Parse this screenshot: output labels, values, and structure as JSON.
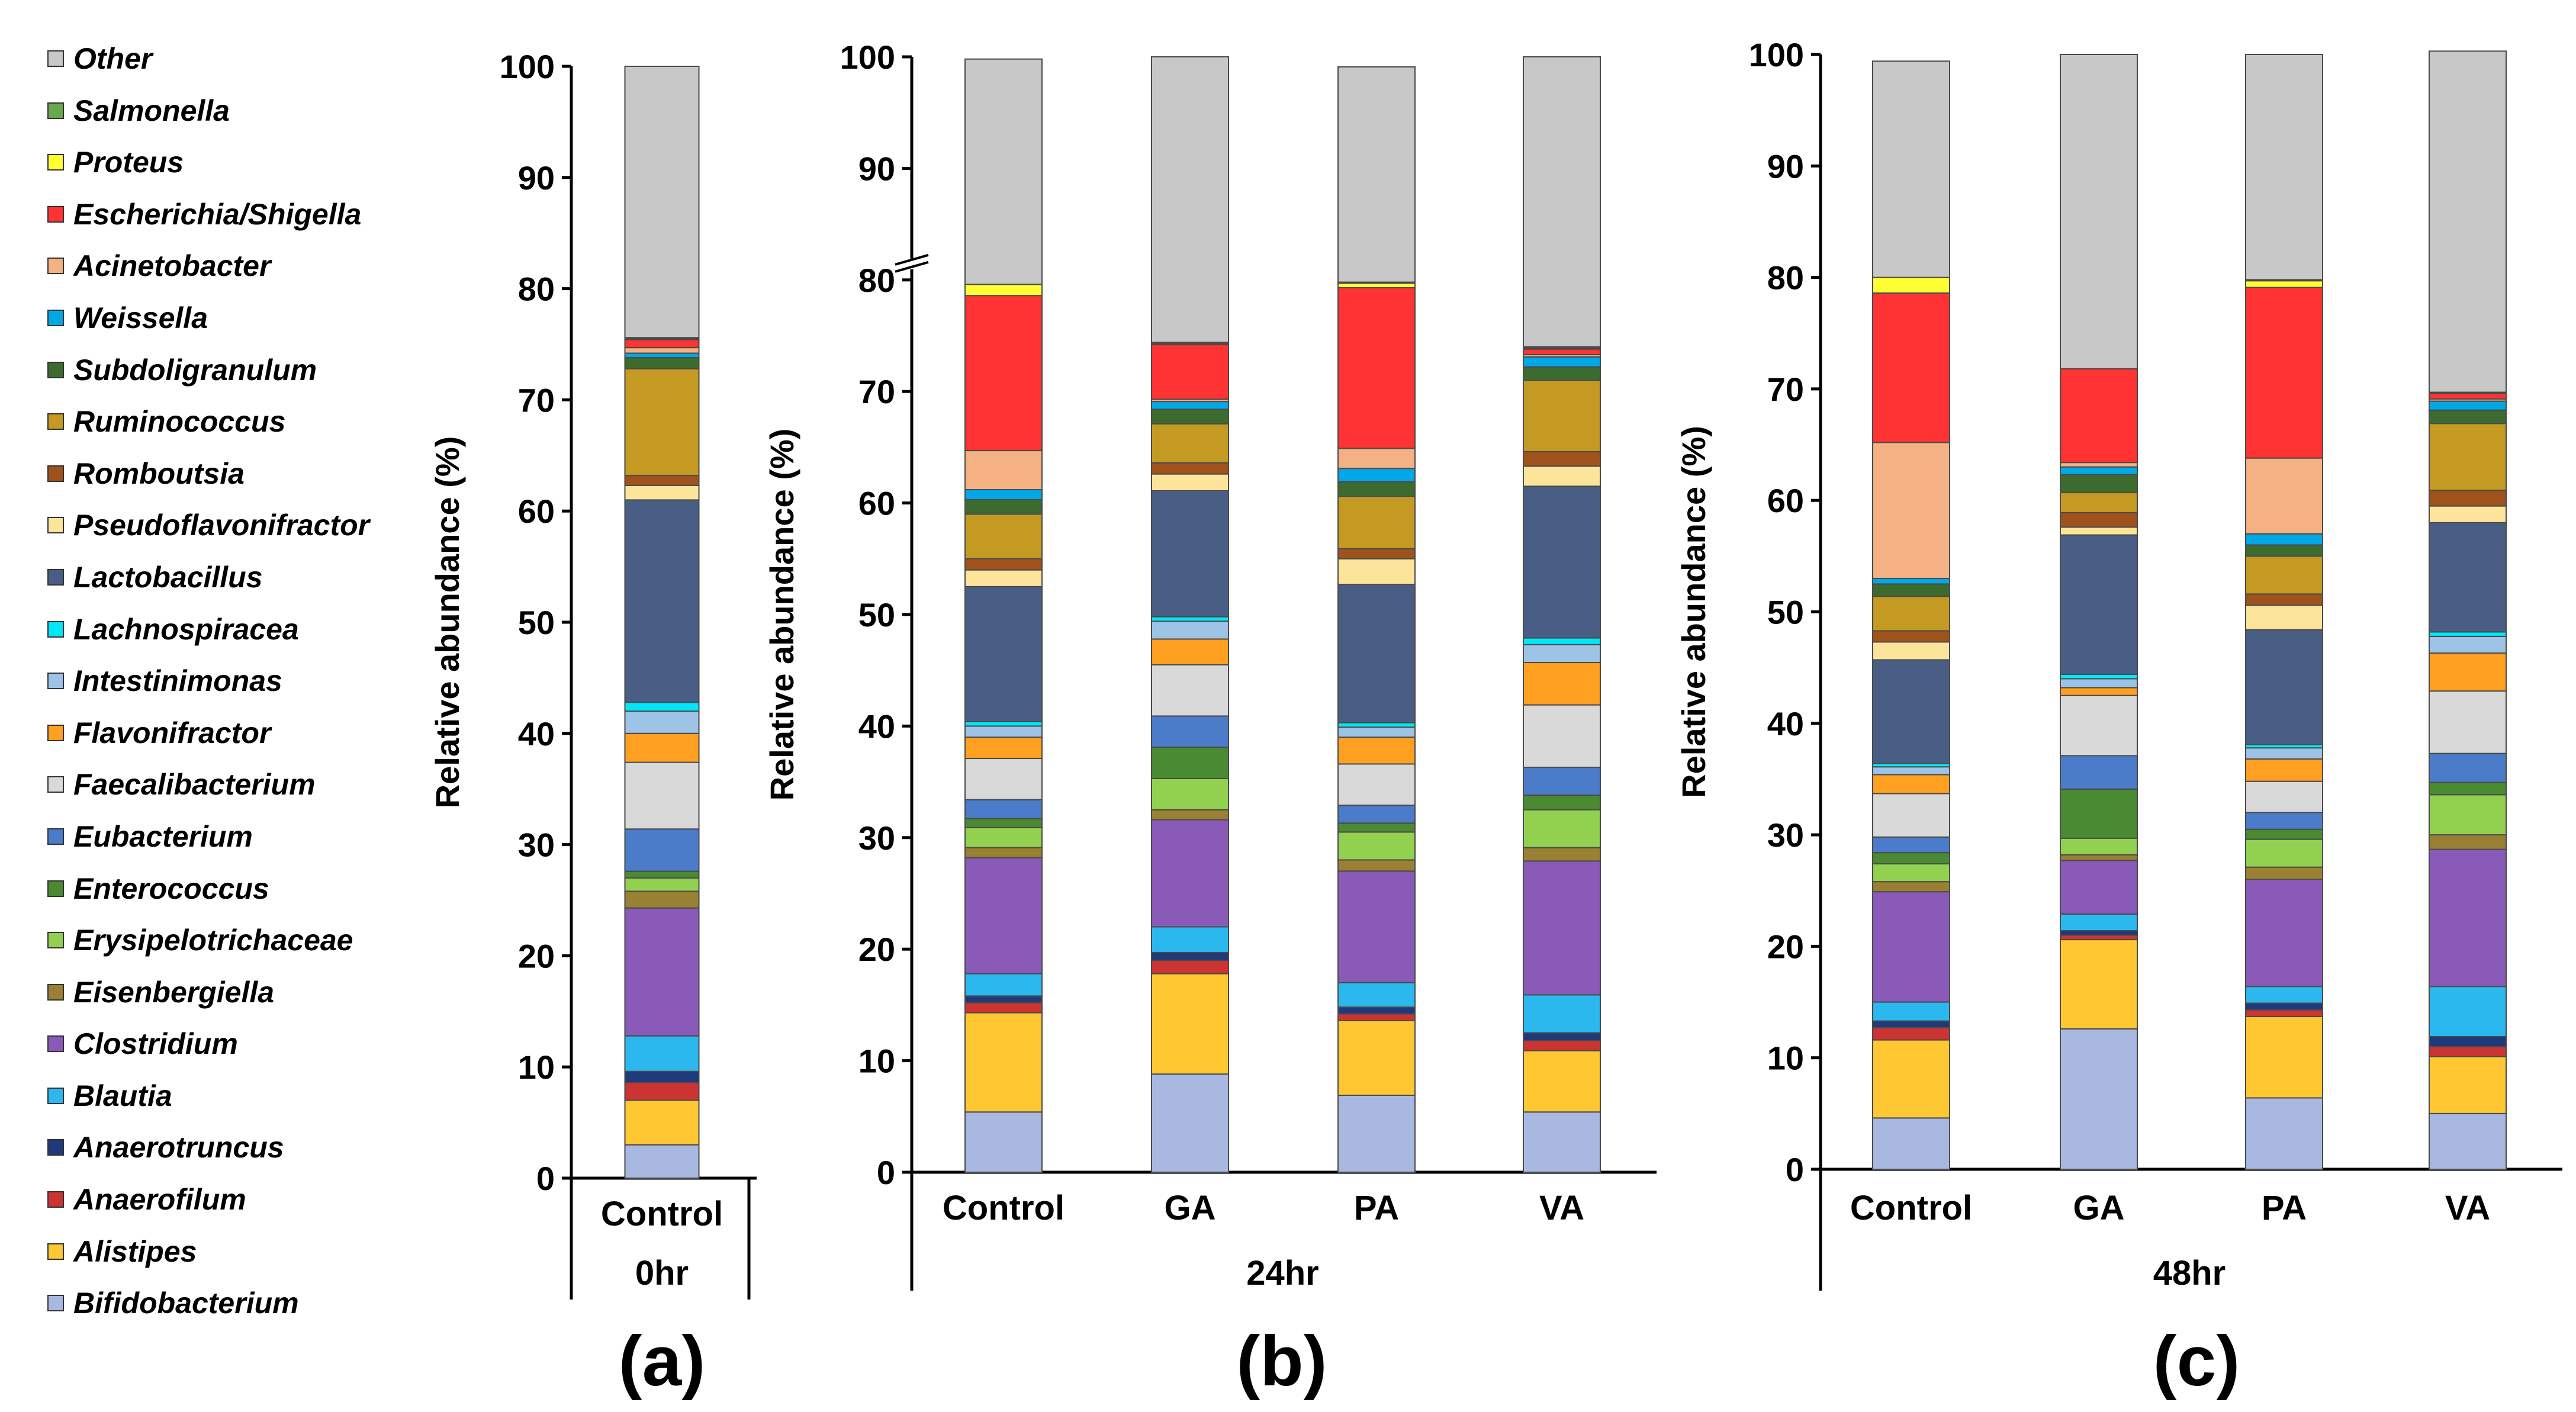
{
  "legend": [
    {
      "name": "Other",
      "color": "#c8c8c8"
    },
    {
      "name": "Salmonella",
      "color": "#6aa84f"
    },
    {
      "name": "Proteus",
      "color": "#ffff33"
    },
    {
      "name": "Escherichia/Shigella",
      "color": "#ff3333"
    },
    {
      "name": "Acinetobacter",
      "color": "#f4b183"
    },
    {
      "name": "Weissella",
      "color": "#00a8e8"
    },
    {
      "name": "Subdoligranulum",
      "color": "#3d6b2f"
    },
    {
      "name": "Ruminococcus",
      "color": "#c49a22"
    },
    {
      "name": "Romboutsia",
      "color": "#a0521d"
    },
    {
      "name": "Pseudoflavonifractor",
      "color": "#fce59a"
    },
    {
      "name": "Lactobacillus",
      "color": "#4a5e85"
    },
    {
      "name": "Lachnospiracea",
      "color": "#00e8f8"
    },
    {
      "name": "Intestinimonas",
      "color": "#9dc3e6"
    },
    {
      "name": "Flavonifractor",
      "color": "#ffa020"
    },
    {
      "name": "Faecalibacterium",
      "color": "#d9d9d9"
    },
    {
      "name": "Eubacterium",
      "color": "#4a7cc9"
    },
    {
      "name": "Enterococcus",
      "color": "#4a8a32"
    },
    {
      "name": "Erysipelotrichaceae",
      "color": "#92d050"
    },
    {
      "name": "Eisenbergiella",
      "color": "#9a8032"
    },
    {
      "name": "Clostridium",
      "color": "#8a5ab8"
    },
    {
      "name": "Blautia",
      "color": "#2ab8ee"
    },
    {
      "name": "Anaerotruncus",
      "color": "#1f3a7a"
    },
    {
      "name": "Anaerofilum",
      "color": "#cc3333"
    },
    {
      "name": "Alistipes",
      "color": "#ffc832"
    },
    {
      "name": "Bifidobacterium",
      "color": "#a8b8e0"
    }
  ],
  "chart_data": [
    {
      "type": "bar",
      "stacked": true,
      "panel": "(a)",
      "group_label": "0hr",
      "ylabel": "Relative abundance (%)",
      "ylim": [
        0,
        100
      ],
      "yticks": [
        "0",
        "10",
        "20",
        "30",
        "40",
        "50",
        "60",
        "70",
        "80",
        "90",
        "100"
      ],
      "categories": [
        "Control"
      ],
      "stack_order_bottom_to_top": [
        "Bifidobacterium",
        "Alistipes",
        "Anaerofilum",
        "Anaerotruncus",
        "Blautia",
        "Clostridium",
        "Eisenbergiella",
        "Erysipelotrichaceae",
        "Enterococcus",
        "Eubacterium",
        "Faecalibacterium",
        "Flavonifractor",
        "Intestinimonas",
        "Lachnospiracea",
        "Lactobacillus",
        "Pseudoflavonifractor",
        "Romboutsia",
        "Ruminococcus",
        "Subdoligranulum",
        "Weissella",
        "Acinetobacter",
        "Escherichia/Shigella",
        "Proteus",
        "Salmonella",
        "Other"
      ],
      "series": [
        {
          "name": "Bifidobacterium",
          "values": [
            3.0
          ]
        },
        {
          "name": "Alistipes",
          "values": [
            4.0
          ]
        },
        {
          "name": "Anaerofilum",
          "values": [
            1.6
          ]
        },
        {
          "name": "Anaerotruncus",
          "values": [
            1.0
          ]
        },
        {
          "name": "Blautia",
          "values": [
            3.2
          ]
        },
        {
          "name": "Clostridium",
          "values": [
            11.5
          ]
        },
        {
          "name": "Eisenbergiella",
          "values": [
            1.5
          ]
        },
        {
          "name": "Erysipelotrichaceae",
          "values": [
            1.2
          ]
        },
        {
          "name": "Enterococcus",
          "values": [
            0.6
          ]
        },
        {
          "name": "Eubacterium",
          "values": [
            3.8
          ]
        },
        {
          "name": "Faecalibacterium",
          "values": [
            6.0
          ]
        },
        {
          "name": "Flavonifractor",
          "values": [
            2.6
          ]
        },
        {
          "name": "Intestinimonas",
          "values": [
            2.0
          ]
        },
        {
          "name": "Lachnospiracea",
          "values": [
            0.8
          ]
        },
        {
          "name": "Lactobacillus",
          "values": [
            18.2
          ]
        },
        {
          "name": "Pseudoflavonifractor",
          "values": [
            1.3
          ]
        },
        {
          "name": "Romboutsia",
          "values": [
            0.9
          ]
        },
        {
          "name": "Ruminococcus",
          "values": [
            9.6
          ]
        },
        {
          "name": "Subdoligranulum",
          "values": [
            1.0
          ]
        },
        {
          "name": "Weissella",
          "values": [
            0.4
          ]
        },
        {
          "name": "Acinetobacter",
          "values": [
            0.5
          ]
        },
        {
          "name": "Escherichia/Shigella",
          "values": [
            0.7
          ]
        },
        {
          "name": "Proteus",
          "values": [
            0.1
          ]
        },
        {
          "name": "Salmonella",
          "values": [
            0.1
          ]
        },
        {
          "name": "Other",
          "values": [
            24.4
          ]
        }
      ]
    },
    {
      "type": "bar",
      "stacked": true,
      "panel": "(b)",
      "group_label": "24hr",
      "ylabel": "Relative abundance (%)",
      "ylim": [
        0,
        100
      ],
      "yticks": [
        "0",
        "10",
        "20",
        "30",
        "40",
        "50",
        "60",
        "70",
        "80",
        "90",
        "100"
      ],
      "axis_break": true,
      "categories": [
        "Control",
        "GA",
        "PA",
        "VA"
      ],
      "series": [
        {
          "name": "Bifidobacterium",
          "values": [
            5.4,
            8.8,
            6.9,
            5.4
          ]
        },
        {
          "name": "Alistipes",
          "values": [
            8.9,
            9.0,
            6.7,
            5.5
          ]
        },
        {
          "name": "Anaerofilum",
          "values": [
            0.9,
            1.2,
            0.6,
            0.9
          ]
        },
        {
          "name": "Anaerotruncus",
          "values": [
            0.6,
            0.7,
            0.6,
            0.7
          ]
        },
        {
          "name": "Blautia",
          "values": [
            2.0,
            2.3,
            2.2,
            3.4
          ]
        },
        {
          "name": "Clostridium",
          "values": [
            10.4,
            9.6,
            10.0,
            12.0
          ]
        },
        {
          "name": "Eisenbergiella",
          "values": [
            0.9,
            0.9,
            1.0,
            1.2
          ]
        },
        {
          "name": "Erysipelotrichaceae",
          "values": [
            1.8,
            2.8,
            2.5,
            3.4
          ]
        },
        {
          "name": "Enterococcus",
          "values": [
            0.8,
            2.8,
            0.8,
            1.3
          ]
        },
        {
          "name": "Eubacterium",
          "values": [
            1.7,
            2.8,
            1.6,
            2.5
          ]
        },
        {
          "name": "Faecalibacterium",
          "values": [
            3.7,
            4.6,
            3.7,
            5.6
          ]
        },
        {
          "name": "Flavonifractor",
          "values": [
            1.9,
            2.3,
            2.4,
            3.8
          ]
        },
        {
          "name": "Intestinimonas",
          "values": [
            1.0,
            1.6,
            0.9,
            1.6
          ]
        },
        {
          "name": "Lachnospiracea",
          "values": [
            0.4,
            0.4,
            0.4,
            0.6
          ]
        },
        {
          "name": "Lactobacillus",
          "values": [
            12.1,
            11.3,
            12.4,
            13.6
          ]
        },
        {
          "name": "Pseudoflavonifractor",
          "values": [
            1.5,
            1.5,
            2.3,
            1.8
          ]
        },
        {
          "name": "Romboutsia",
          "values": [
            1.0,
            1.0,
            0.9,
            1.3
          ]
        },
        {
          "name": "Ruminococcus",
          "values": [
            4.0,
            3.5,
            4.7,
            6.4
          ]
        },
        {
          "name": "Subdoligranulum",
          "values": [
            1.3,
            1.3,
            1.3,
            1.2
          ]
        },
        {
          "name": "Weissella",
          "values": [
            0.9,
            0.7,
            1.2,
            0.9
          ]
        },
        {
          "name": "Acinetobacter",
          "values": [
            3.5,
            0.2,
            1.8,
            0.2
          ]
        },
        {
          "name": "Escherichia/Shigella",
          "values": [
            13.9,
            4.9,
            14.4,
            0.5
          ]
        },
        {
          "name": "Proteus",
          "values": [
            1.0,
            0.1,
            0.4,
            0.1
          ]
        },
        {
          "name": "Salmonella",
          "values": [
            0.0,
            0.1,
            0.1,
            0.1
          ]
        },
        {
          "name": "Other",
          "values": [
            20.2,
            25.6,
            19.3,
            26.0
          ]
        }
      ]
    },
    {
      "type": "bar",
      "stacked": true,
      "panel": "(c)",
      "group_label": "48hr",
      "ylabel": "Relative abundance (%)",
      "ylim": [
        0,
        100
      ],
      "yticks": [
        "0",
        "10",
        "20",
        "30",
        "40",
        "50",
        "60",
        "70",
        "80",
        "90",
        "100"
      ],
      "categories": [
        "Control",
        "GA",
        "PA",
        "VA"
      ],
      "series": [
        {
          "name": "Bifidobacterium",
          "values": [
            4.6,
            12.6,
            6.4,
            5.0
          ]
        },
        {
          "name": "Alistipes",
          "values": [
            7.0,
            8.0,
            7.3,
            5.1
          ]
        },
        {
          "name": "Anaerofilum",
          "values": [
            1.1,
            0.4,
            0.6,
            0.9
          ]
        },
        {
          "name": "Anaerotruncus",
          "values": [
            0.6,
            0.4,
            0.6,
            0.9
          ]
        },
        {
          "name": "Blautia",
          "values": [
            1.7,
            1.5,
            1.5,
            4.5
          ]
        },
        {
          "name": "Clostridium",
          "values": [
            9.9,
            4.8,
            9.6,
            12.3
          ]
        },
        {
          "name": "Eisenbergiella",
          "values": [
            0.9,
            0.5,
            1.1,
            1.3
          ]
        },
        {
          "name": "Erysipelotrichaceae",
          "values": [
            1.6,
            1.5,
            2.5,
            3.6
          ]
        },
        {
          "name": "Enterococcus",
          "values": [
            1.0,
            4.4,
            0.9,
            1.1
          ]
        },
        {
          "name": "Eubacterium",
          "values": [
            1.4,
            3.0,
            1.5,
            2.6
          ]
        },
        {
          "name": "Faecalibacterium",
          "values": [
            3.9,
            5.4,
            2.8,
            5.6
          ]
        },
        {
          "name": "Flavonifractor",
          "values": [
            1.7,
            0.7,
            2.0,
            3.4
          ]
        },
        {
          "name": "Intestinimonas",
          "values": [
            0.7,
            0.8,
            1.0,
            1.5
          ]
        },
        {
          "name": "Lachnospiracea",
          "values": [
            0.3,
            0.4,
            0.3,
            0.4
          ]
        },
        {
          "name": "Lactobacillus",
          "values": [
            9.3,
            12.5,
            10.3,
            9.8
          ]
        },
        {
          "name": "Pseudoflavonifractor",
          "values": [
            1.6,
            0.7,
            2.2,
            1.5
          ]
        },
        {
          "name": "Romboutsia",
          "values": [
            1.0,
            1.3,
            1.0,
            1.4
          ]
        },
        {
          "name": "Ruminococcus",
          "values": [
            3.1,
            1.8,
            3.4,
            6.0
          ]
        },
        {
          "name": "Subdoligranulum",
          "values": [
            1.1,
            1.6,
            1.0,
            1.2
          ]
        },
        {
          "name": "Weissella",
          "values": [
            0.5,
            0.7,
            1.0,
            0.8
          ]
        },
        {
          "name": "Acinetobacter",
          "values": [
            12.2,
            0.4,
            6.8,
            0.2
          ]
        },
        {
          "name": "Escherichia/Shigella",
          "values": [
            13.4,
            8.4,
            15.3,
            0.5
          ]
        },
        {
          "name": "Proteus",
          "values": [
            1.4,
            0.0,
            0.6,
            0.1
          ]
        },
        {
          "name": "Salmonella",
          "values": [
            0.0,
            0.0,
            0.1,
            0.0
          ]
        },
        {
          "name": "Other",
          "values": [
            19.4,
            28.2,
            20.2,
            30.6
          ]
        }
      ]
    }
  ]
}
